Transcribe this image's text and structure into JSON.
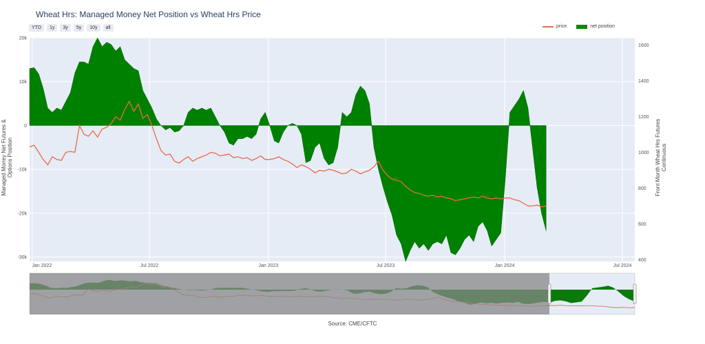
{
  "title": "Wheat Hrs: Managed Money Net Position vs Wheat Hrs Price",
  "range_buttons": [
    "YTD",
    "1y",
    "3y",
    "5y",
    "10y",
    "all"
  ],
  "legend": {
    "price": "price",
    "net_position": "net position"
  },
  "y_left_label": "Managed Money Net Futures & Options Position",
  "y_right_label": "Front Month Wheat Hrs Futures Continuous",
  "source": "Source: CME/CFTC",
  "colors": {
    "price": "#e8694a",
    "net_position": "#008000",
    "plot_bg": "#e5ecf6",
    "range_mask": "#888888"
  },
  "chart_data": {
    "type": "area",
    "x_ticks": [
      "Jan 2022",
      "Jul 2022",
      "Jan 2023",
      "Jul 2023",
      "Jan 2024",
      "Jul 2024"
    ],
    "y_left_ticks": [
      "20k",
      "10k",
      "0",
      "-10k",
      "-20k",
      "-30k"
    ],
    "y_right_ticks": [
      "1600",
      "1400",
      "1200",
      "1000",
      "800",
      "600",
      "400"
    ],
    "y_left_range": [
      -31000,
      20000
    ],
    "y_right_range": [
      390,
      1640
    ],
    "x_range": [
      "2021-12-28",
      "2024-07-20"
    ],
    "grid": true,
    "legend_position": "top-right",
    "series": [
      {
        "name": "net position",
        "kind": "area",
        "axis": "left",
        "points": [
          [
            "2021-12-28",
            13000
          ],
          [
            "2022-01-04",
            13200
          ],
          [
            "2022-01-11",
            11800
          ],
          [
            "2022-01-18",
            8500
          ],
          [
            "2022-01-25",
            4000
          ],
          [
            "2022-02-01",
            3000
          ],
          [
            "2022-02-08",
            4000
          ],
          [
            "2022-02-15",
            3500
          ],
          [
            "2022-02-22",
            5500
          ],
          [
            "2022-03-01",
            7500
          ],
          [
            "2022-03-08",
            12000
          ],
          [
            "2022-03-15",
            14500
          ],
          [
            "2022-03-22",
            14500
          ],
          [
            "2022-03-29",
            14000
          ],
          [
            "2022-04-05",
            18000
          ],
          [
            "2022-04-12",
            20000
          ],
          [
            "2022-04-19",
            18000
          ],
          [
            "2022-04-26",
            19000
          ],
          [
            "2022-05-03",
            18500
          ],
          [
            "2022-05-10",
            17000
          ],
          [
            "2022-05-17",
            18000
          ],
          [
            "2022-05-24",
            15000
          ],
          [
            "2022-05-31",
            14000
          ],
          [
            "2022-06-07",
            13000
          ],
          [
            "2022-06-14",
            12500
          ],
          [
            "2022-06-21",
            8000
          ],
          [
            "2022-06-28",
            6000
          ],
          [
            "2022-07-05",
            4000
          ],
          [
            "2022-07-12",
            1500
          ],
          [
            "2022-07-19",
            0
          ],
          [
            "2022-07-26",
            -1000
          ],
          [
            "2022-08-02",
            -500
          ],
          [
            "2022-08-09",
            -1500
          ],
          [
            "2022-08-16",
            -1200
          ],
          [
            "2022-08-23",
            0
          ],
          [
            "2022-08-30",
            3000
          ],
          [
            "2022-09-06",
            4000
          ],
          [
            "2022-09-13",
            3500
          ],
          [
            "2022-09-20",
            4000
          ],
          [
            "2022-09-27",
            3500
          ],
          [
            "2022-10-04",
            4000
          ],
          [
            "2022-10-11",
            2000
          ],
          [
            "2022-10-18",
            0
          ],
          [
            "2022-10-25",
            -1500
          ],
          [
            "2022-11-01",
            -4000
          ],
          [
            "2022-11-08",
            -4500
          ],
          [
            "2022-11-15",
            -3000
          ],
          [
            "2022-11-22",
            -3000
          ],
          [
            "2022-11-29",
            -2500
          ],
          [
            "2022-12-06",
            -3000
          ],
          [
            "2022-12-13",
            -2000
          ],
          [
            "2022-12-20",
            1500
          ],
          [
            "2022-12-27",
            3000
          ],
          [
            "2023-01-03",
            0
          ],
          [
            "2023-01-10",
            -3500
          ],
          [
            "2023-01-17",
            -4000
          ],
          [
            "2023-01-24",
            -1500
          ],
          [
            "2023-01-31",
            0
          ],
          [
            "2023-02-07",
            500
          ],
          [
            "2023-02-14",
            0
          ],
          [
            "2023-02-21",
            -2000
          ],
          [
            "2023-02-28",
            -8500
          ],
          [
            "2023-03-07",
            -8000
          ],
          [
            "2023-03-14",
            -5000
          ],
          [
            "2023-03-21",
            -4000
          ],
          [
            "2023-03-28",
            -7500
          ],
          [
            "2023-04-04",
            -9000
          ],
          [
            "2023-04-11",
            -8500
          ],
          [
            "2023-04-18",
            -5000
          ],
          [
            "2023-04-25",
            3000
          ],
          [
            "2023-05-02",
            2000
          ],
          [
            "2023-05-09",
            3000
          ],
          [
            "2023-05-16",
            7000
          ],
          [
            "2023-05-23",
            9000
          ],
          [
            "2023-05-30",
            8000
          ],
          [
            "2023-06-06",
            5000
          ],
          [
            "2023-06-13",
            -5000
          ],
          [
            "2023-06-20",
            -10000
          ],
          [
            "2023-06-27",
            -14000
          ],
          [
            "2023-07-04",
            -17500
          ],
          [
            "2023-07-11",
            -20500
          ],
          [
            "2023-07-18",
            -25000
          ],
          [
            "2023-07-25",
            -27000
          ],
          [
            "2023-08-01",
            -31000
          ],
          [
            "2023-08-08",
            -28500
          ],
          [
            "2023-08-15",
            -26500
          ],
          [
            "2023-08-22",
            -28000
          ],
          [
            "2023-08-29",
            -27000
          ],
          [
            "2023-09-05",
            -28500
          ],
          [
            "2023-09-12",
            -27000
          ],
          [
            "2023-09-19",
            -26500
          ],
          [
            "2023-09-26",
            -27000
          ],
          [
            "2023-10-03",
            -25000
          ],
          [
            "2023-10-10",
            -29000
          ],
          [
            "2023-10-17",
            -29500
          ],
          [
            "2023-10-24",
            -28000
          ],
          [
            "2023-10-31",
            -26000
          ],
          [
            "2023-11-07",
            -25000
          ],
          [
            "2023-11-14",
            -26500
          ],
          [
            "2023-11-21",
            -23000
          ],
          [
            "2023-11-28",
            -22000
          ],
          [
            "2023-12-05",
            -24000
          ],
          [
            "2023-12-12",
            -27500
          ],
          [
            "2023-12-19",
            -26000
          ],
          [
            "2023-12-26",
            -24500
          ],
          [
            "2024-01-02",
            -12000
          ],
          [
            "2024-01-09",
            3000
          ],
          [
            "2024-01-16",
            4500
          ],
          [
            "2024-01-23",
            6000
          ],
          [
            "2024-01-30",
            8000
          ],
          [
            "2024-02-06",
            4000
          ],
          [
            "2024-02-13",
            -5000
          ],
          [
            "2024-02-20",
            -14000
          ],
          [
            "2024-02-27",
            -20000
          ],
          [
            "2024-03-05",
            -24000
          ]
        ]
      },
      {
        "name": "price",
        "kind": "line",
        "axis": "right",
        "points": [
          [
            "2021-12-28",
            1030
          ],
          [
            "2022-01-04",
            1040
          ],
          [
            "2022-01-11",
            1000
          ],
          [
            "2022-01-18",
            960
          ],
          [
            "2022-01-25",
            930
          ],
          [
            "2022-02-01",
            975
          ],
          [
            "2022-02-08",
            960
          ],
          [
            "2022-02-15",
            955
          ],
          [
            "2022-02-22",
            1000
          ],
          [
            "2022-03-01",
            1005
          ],
          [
            "2022-03-08",
            1000
          ],
          [
            "2022-03-15",
            1150
          ],
          [
            "2022-03-22",
            1100
          ],
          [
            "2022-03-29",
            1090
          ],
          [
            "2022-04-05",
            1120
          ],
          [
            "2022-04-12",
            1085
          ],
          [
            "2022-04-19",
            1130
          ],
          [
            "2022-04-26",
            1140
          ],
          [
            "2022-05-03",
            1160
          ],
          [
            "2022-05-10",
            1200
          ],
          [
            "2022-05-17",
            1180
          ],
          [
            "2022-05-24",
            1240
          ],
          [
            "2022-05-31",
            1285
          ],
          [
            "2022-06-07",
            1230
          ],
          [
            "2022-06-14",
            1270
          ],
          [
            "2022-06-21",
            1190
          ],
          [
            "2022-06-28",
            1210
          ],
          [
            "2022-07-05",
            1150
          ],
          [
            "2022-07-12",
            1075
          ],
          [
            "2022-07-19",
            1010
          ],
          [
            "2022-07-26",
            985
          ],
          [
            "2022-08-02",
            990
          ],
          [
            "2022-08-09",
            950
          ],
          [
            "2022-08-16",
            940
          ],
          [
            "2022-08-23",
            960
          ],
          [
            "2022-08-30",
            975
          ],
          [
            "2022-09-06",
            950
          ],
          [
            "2022-09-13",
            965
          ],
          [
            "2022-09-20",
            975
          ],
          [
            "2022-09-27",
            985
          ],
          [
            "2022-10-04",
            1000
          ],
          [
            "2022-10-11",
            995
          ],
          [
            "2022-10-18",
            980
          ],
          [
            "2022-10-25",
            985
          ],
          [
            "2022-11-01",
            990
          ],
          [
            "2022-11-08",
            970
          ],
          [
            "2022-11-15",
            975
          ],
          [
            "2022-11-22",
            965
          ],
          [
            "2022-11-29",
            970
          ],
          [
            "2022-12-06",
            955
          ],
          [
            "2022-12-13",
            965
          ],
          [
            "2022-12-20",
            980
          ],
          [
            "2022-12-27",
            960
          ],
          [
            "2023-01-03",
            960
          ],
          [
            "2023-01-10",
            965
          ],
          [
            "2023-01-17",
            975
          ],
          [
            "2023-01-24",
            960
          ],
          [
            "2023-01-31",
            950
          ],
          [
            "2023-02-07",
            935
          ],
          [
            "2023-02-14",
            915
          ],
          [
            "2023-02-21",
            930
          ],
          [
            "2023-02-28",
            920
          ],
          [
            "2023-03-07",
            905
          ],
          [
            "2023-03-14",
            885
          ],
          [
            "2023-03-21",
            900
          ],
          [
            "2023-03-28",
            895
          ],
          [
            "2023-04-04",
            905
          ],
          [
            "2023-04-11",
            900
          ],
          [
            "2023-04-18",
            890
          ],
          [
            "2023-04-25",
            880
          ],
          [
            "2023-05-02",
            885
          ],
          [
            "2023-05-09",
            905
          ],
          [
            "2023-05-16",
            895
          ],
          [
            "2023-05-23",
            880
          ],
          [
            "2023-05-30",
            890
          ],
          [
            "2023-06-06",
            900
          ],
          [
            "2023-06-13",
            920
          ],
          [
            "2023-06-20",
            950
          ],
          [
            "2023-06-27",
            900
          ],
          [
            "2023-07-04",
            870
          ],
          [
            "2023-07-11",
            850
          ],
          [
            "2023-07-18",
            845
          ],
          [
            "2023-07-25",
            835
          ],
          [
            "2023-08-01",
            810
          ],
          [
            "2023-08-08",
            790
          ],
          [
            "2023-08-15",
            775
          ],
          [
            "2023-08-22",
            770
          ],
          [
            "2023-08-29",
            760
          ],
          [
            "2023-09-05",
            755
          ],
          [
            "2023-09-12",
            760
          ],
          [
            "2023-09-19",
            750
          ],
          [
            "2023-09-26",
            755
          ],
          [
            "2023-10-03",
            745
          ],
          [
            "2023-10-10",
            740
          ],
          [
            "2023-10-17",
            730
          ],
          [
            "2023-10-24",
            735
          ],
          [
            "2023-10-31",
            740
          ],
          [
            "2023-11-07",
            745
          ],
          [
            "2023-11-14",
            750
          ],
          [
            "2023-11-21",
            745
          ],
          [
            "2023-11-28",
            755
          ],
          [
            "2023-12-05",
            745
          ],
          [
            "2023-12-12",
            740
          ],
          [
            "2023-12-19",
            745
          ],
          [
            "2023-12-26",
            740
          ],
          [
            "2024-01-02",
            745
          ],
          [
            "2024-01-09",
            745
          ],
          [
            "2024-01-16",
            735
          ],
          [
            "2024-01-23",
            730
          ],
          [
            "2024-01-30",
            715
          ],
          [
            "2024-02-06",
            700
          ],
          [
            "2024-02-13",
            700
          ],
          [
            "2024-02-20",
            705
          ],
          [
            "2024-02-27",
            695
          ],
          [
            "2024-03-05",
            700
          ]
        ]
      }
    ]
  }
}
